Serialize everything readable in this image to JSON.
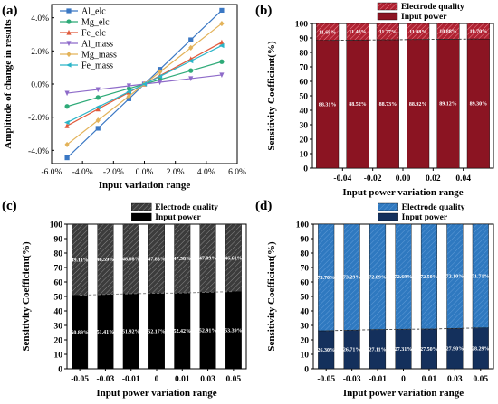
{
  "chart_data": [
    {
      "panel": "(a)",
      "type": "line",
      "xlabel": "Input variation range",
      "ylabel": "Amplitude of change in results",
      "x": [
        -0.05,
        -0.03,
        -0.01,
        0.0,
        0.01,
        0.03,
        0.05
      ],
      "xticks": [
        "-6.0%",
        "-4.0%",
        "-2.0%",
        "0.0%",
        "2.0%",
        "4.0%",
        "6.0%"
      ],
      "xlim": [
        -0.06,
        0.06
      ],
      "yticks": [
        "-4.0%",
        "-2.0%",
        "0.0%",
        "2.0%",
        "4.0%"
      ],
      "ylim": [
        -0.048,
        0.048
      ],
      "legend": "top-left",
      "series": [
        {
          "name": "Al_elc",
          "color": "#3b78c4",
          "marker": "square",
          "values": [
            -0.0445,
            -0.0267,
            -0.0089,
            0.0,
            0.0089,
            0.0267,
            0.0445
          ]
        },
        {
          "name": "Mg_elc",
          "color": "#2eaa78",
          "marker": "circle",
          "values": [
            -0.0135,
            -0.0081,
            -0.0027,
            0.0,
            0.0027,
            0.0081,
            0.0135
          ]
        },
        {
          "name": "Fe_elc",
          "color": "#e05a3c",
          "marker": "triangle-up",
          "values": [
            -0.0252,
            -0.0151,
            -0.005,
            0.0,
            0.005,
            0.0151,
            0.0252
          ]
        },
        {
          "name": "Al_mass",
          "color": "#8e6bc9",
          "marker": "triangle-down",
          "values": [
            -0.0055,
            -0.0033,
            -0.0011,
            0.0,
            0.0011,
            0.0033,
            0.0055
          ]
        },
        {
          "name": "Mg_mass",
          "color": "#e3b35a",
          "marker": "diamond",
          "values": [
            -0.0365,
            -0.0219,
            -0.0073,
            0.0,
            0.0073,
            0.0219,
            0.0365
          ]
        },
        {
          "name": "Fe_mass",
          "color": "#2bb5c8",
          "marker": "left-triangle",
          "values": [
            -0.0232,
            -0.0139,
            -0.0046,
            0.0,
            0.0046,
            0.0139,
            0.0232
          ]
        }
      ]
    },
    {
      "panel": "(b)",
      "type": "bar",
      "stacked": true,
      "xlabel": "Input power variation range",
      "ylabel": "Sensitivity Coefficient(%)",
      "categories": [
        -0.05,
        -0.03,
        -0.01,
        0.01,
        0.03,
        0.05
      ],
      "xticks": [
        "-0.04",
        "-0.02",
        "0.00",
        "0.02",
        "0.04"
      ],
      "xtick_values": [
        -0.04,
        -0.02,
        0.0,
        0.02,
        0.04
      ],
      "xlim": [
        -0.06,
        0.06
      ],
      "ylim": [
        0,
        100
      ],
      "yticks": [
        "0",
        "10",
        "20",
        "30",
        "40",
        "50",
        "60",
        "70",
        "80",
        "90",
        "100"
      ],
      "legend": "top",
      "series": [
        {
          "name": "Input power",
          "color": "#8b1422",
          "values": [
            88.31,
            88.52,
            88.73,
            88.92,
            89.12,
            89.3
          ],
          "labels": [
            "88.31%",
            "88.52%",
            "88.73%",
            "88.92%",
            "89.12%",
            "89.30%"
          ]
        },
        {
          "name": "Electrode quality",
          "color": "#b02232",
          "pattern": "hatched",
          "values": [
            11.69,
            11.48,
            11.27,
            11.08,
            10.88,
            10.7
          ],
          "labels": [
            "11.69%",
            "11.48%",
            "11.27%",
            "11.08%",
            "10.88%",
            "10.70%"
          ]
        }
      ]
    },
    {
      "panel": "(c)",
      "type": "bar",
      "stacked": true,
      "xlabel": "Input power variation range",
      "ylabel": "Sensitivity Coefficient(%)",
      "categories": [
        "-0.05",
        "-0.03",
        "-0.01",
        "0",
        "0.01",
        "0.03",
        "0.05"
      ],
      "ylim": [
        0,
        100
      ],
      "yticks": [
        "0",
        "10",
        "20",
        "30",
        "40",
        "50",
        "60",
        "70",
        "80",
        "90",
        "100"
      ],
      "legend": "top",
      "series": [
        {
          "name": "Input power",
          "color": "#000000",
          "values": [
            50.89,
            51.41,
            51.92,
            52.17,
            52.42,
            52.91,
            53.39
          ],
          "labels": [
            "50.89%",
            "51.41%",
            "51.92%",
            "52.17%",
            "52.42%",
            "52.91%",
            "53.39%"
          ]
        },
        {
          "name": "Electrode quality",
          "color": "#3c3c3c",
          "pattern": "hatched",
          "values": [
            49.11,
            48.59,
            48.08,
            47.83,
            47.58,
            47.09,
            46.61
          ],
          "labels": [
            "49.11%",
            "48.59%",
            "48.08%",
            "47.83%",
            "47.58%",
            "47.09%",
            "46.61%"
          ]
        }
      ]
    },
    {
      "panel": "(d)",
      "type": "bar",
      "stacked": true,
      "xlabel": "Input power variation range",
      "ylabel": "Sensitivity Coefficient(%)",
      "categories": [
        "-0.05",
        "-0.03",
        "-0.01",
        "0",
        "0.01",
        "0.03",
        "0.05"
      ],
      "ylim": [
        0,
        100
      ],
      "yticks": [
        "0",
        "10",
        "20",
        "30",
        "40",
        "50",
        "60",
        "70",
        "80",
        "90",
        "100"
      ],
      "legend": "top",
      "series": [
        {
          "name": "Input power",
          "color": "#14305c",
          "values": [
            26.3,
            26.71,
            27.11,
            27.31,
            27.5,
            27.9,
            28.29
          ],
          "labels": [
            "26.30%",
            "26.71%",
            "27.11%",
            "27.31%",
            "27.50%",
            "27.90%",
            "28.29%"
          ]
        },
        {
          "name": "Electrode quality",
          "color": "#2f79c0",
          "pattern": "hatched",
          "values": [
            73.7,
            73.29,
            72.89,
            72.69,
            72.5,
            72.1,
            71.71
          ],
          "labels": [
            "73.70%",
            "73.29%",
            "72.89%",
            "72.69%",
            "72.50%",
            "72.10%",
            "71.71%"
          ]
        }
      ]
    }
  ]
}
